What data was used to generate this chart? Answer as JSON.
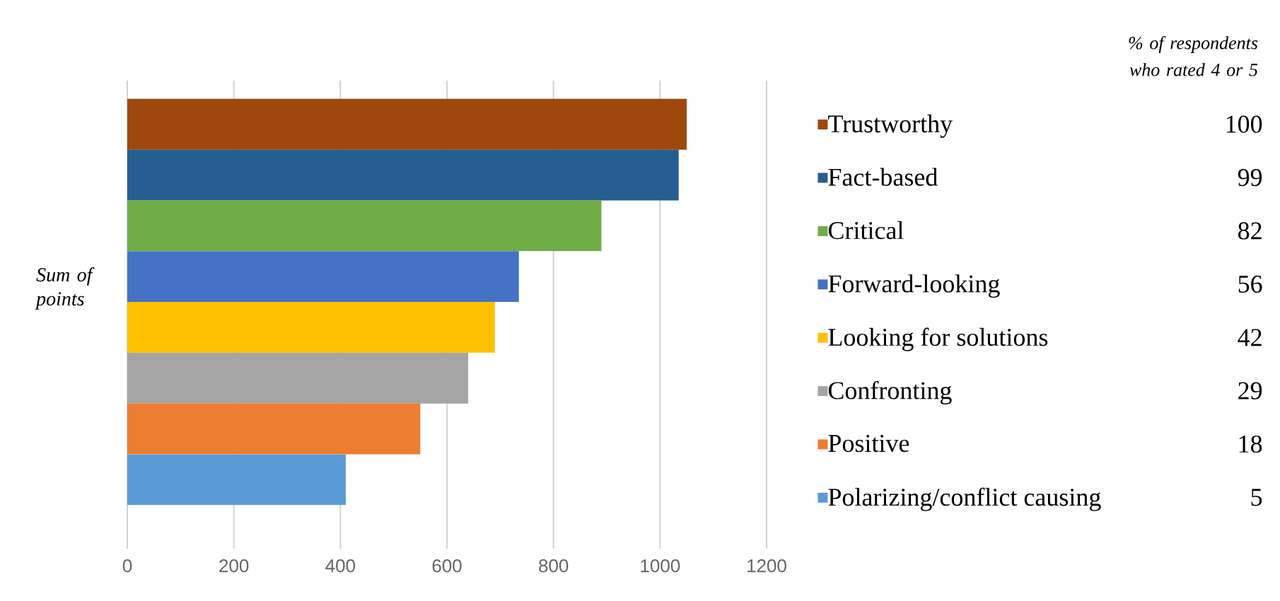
{
  "chart_data": {
    "type": "bar",
    "orientation": "horizontal",
    "ylabel": "Sum of points",
    "legend_title": "% of respondents who rated 4 or 5",
    "categories": [
      null,
      null,
      null,
      null,
      null,
      null,
      null,
      null
    ],
    "series": [
      {
        "name": "Trustworthy",
        "color": "#9e480e",
        "values": [
          1050,
          null,
          null,
          null,
          null,
          null,
          null,
          null
        ]
      },
      {
        "name": "Fact-based",
        "color": "#255e91",
        "values": [
          null,
          1035,
          null,
          null,
          null,
          null,
          null,
          null
        ]
      },
      {
        "name": "Critical",
        "color": "#70ad47",
        "values": [
          null,
          null,
          890,
          null,
          null,
          null,
          null,
          null
        ]
      },
      {
        "name": "Forward-looking",
        "color": "#4472c4",
        "values": [
          null,
          null,
          null,
          735,
          null,
          null,
          null,
          null
        ]
      },
      {
        "name": "Looking for solutions",
        "color": "#ffc000",
        "values": [
          null,
          null,
          null,
          null,
          690,
          null,
          null,
          null
        ]
      },
      {
        "name": "Confronting",
        "color": "#a5a5a5",
        "values": [
          null,
          null,
          null,
          null,
          null,
          640,
          null,
          null
        ]
      },
      {
        "name": "Positive",
        "color": "#ed7d31",
        "values": [
          null,
          null,
          null,
          null,
          null,
          null,
          550,
          null
        ]
      },
      {
        "name": "Polarizing/conflict causing",
        "color": "#5b9bd5",
        "values": [
          null,
          null,
          null,
          null,
          null,
          null,
          null,
          410
        ]
      }
    ],
    "annotations": [
      "100",
      "99",
      "82",
      "56",
      "42",
      "29",
      "18",
      "5"
    ],
    "xlim": [
      0,
      1200
    ],
    "xticks": [
      0,
      200,
      400,
      600,
      800,
      1000,
      1200
    ],
    "stacked": true,
    "grid": "x",
    "legend": "right"
  }
}
